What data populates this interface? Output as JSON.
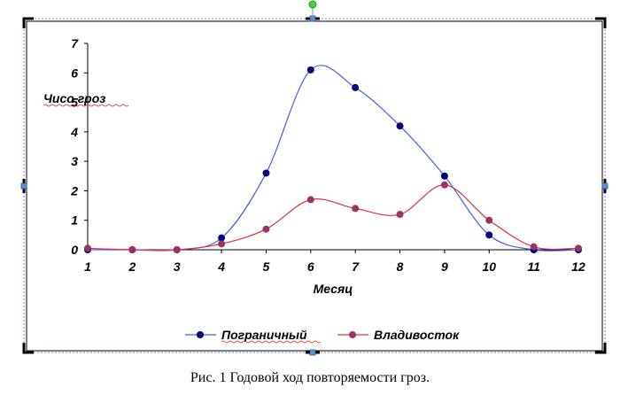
{
  "colors": {
    "series_blue": "#4a5de8",
    "marker_blue": "#000080",
    "series_red": "#e03045",
    "marker_red": "#993366",
    "handles": "#000000",
    "handle_blue": "#5b8fd6",
    "rotate_handle": "#3bd63b",
    "squiggle": "#d02020"
  },
  "chart_data": {
    "type": "line",
    "title": "",
    "xlabel": "Месяц",
    "ylabel": "Чисо гроз",
    "x": [
      1,
      2,
      3,
      4,
      5,
      6,
      7,
      8,
      9,
      10,
      11,
      12
    ],
    "ylim": [
      0,
      7
    ],
    "yticks": [
      0,
      1,
      2,
      3,
      4,
      5,
      6,
      7
    ],
    "grid": false,
    "legend_position": "bottom",
    "smooth": true,
    "series": [
      {
        "name": "Пограничный",
        "color": "#4a5de8",
        "marker": "#000080",
        "values": [
          0,
          0,
          0,
          0.4,
          2.6,
          6.1,
          5.5,
          4.2,
          2.5,
          0.5,
          0,
          0
        ]
      },
      {
        "name": "Владивосток",
        "color": "#e03045",
        "marker": "#993366",
        "values": [
          0.05,
          0,
          0,
          0.2,
          0.7,
          1.7,
          1.4,
          1.2,
          2.2,
          1.0,
          0.1,
          0.05
        ]
      }
    ]
  },
  "caption": "Рис. 1 Годовой ход повторяемости гроз."
}
